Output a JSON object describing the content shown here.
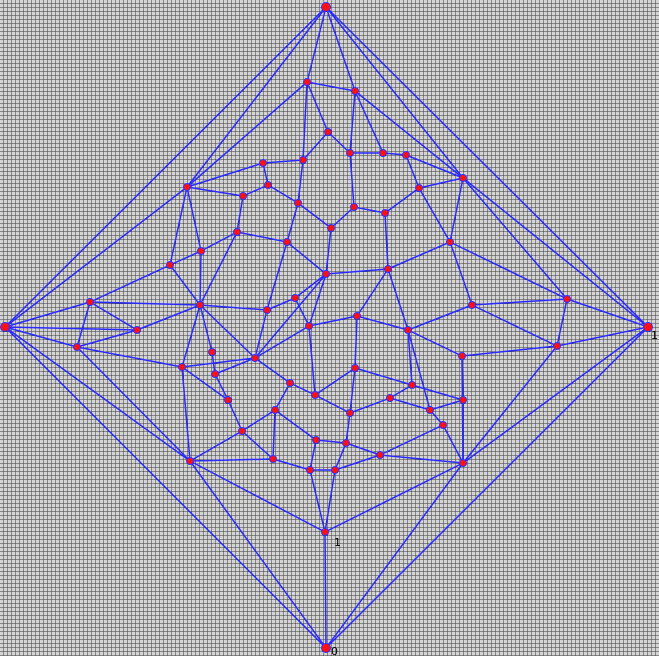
{
  "node_labels": [
    "1",
    "1",
    "0"
  ]
}
